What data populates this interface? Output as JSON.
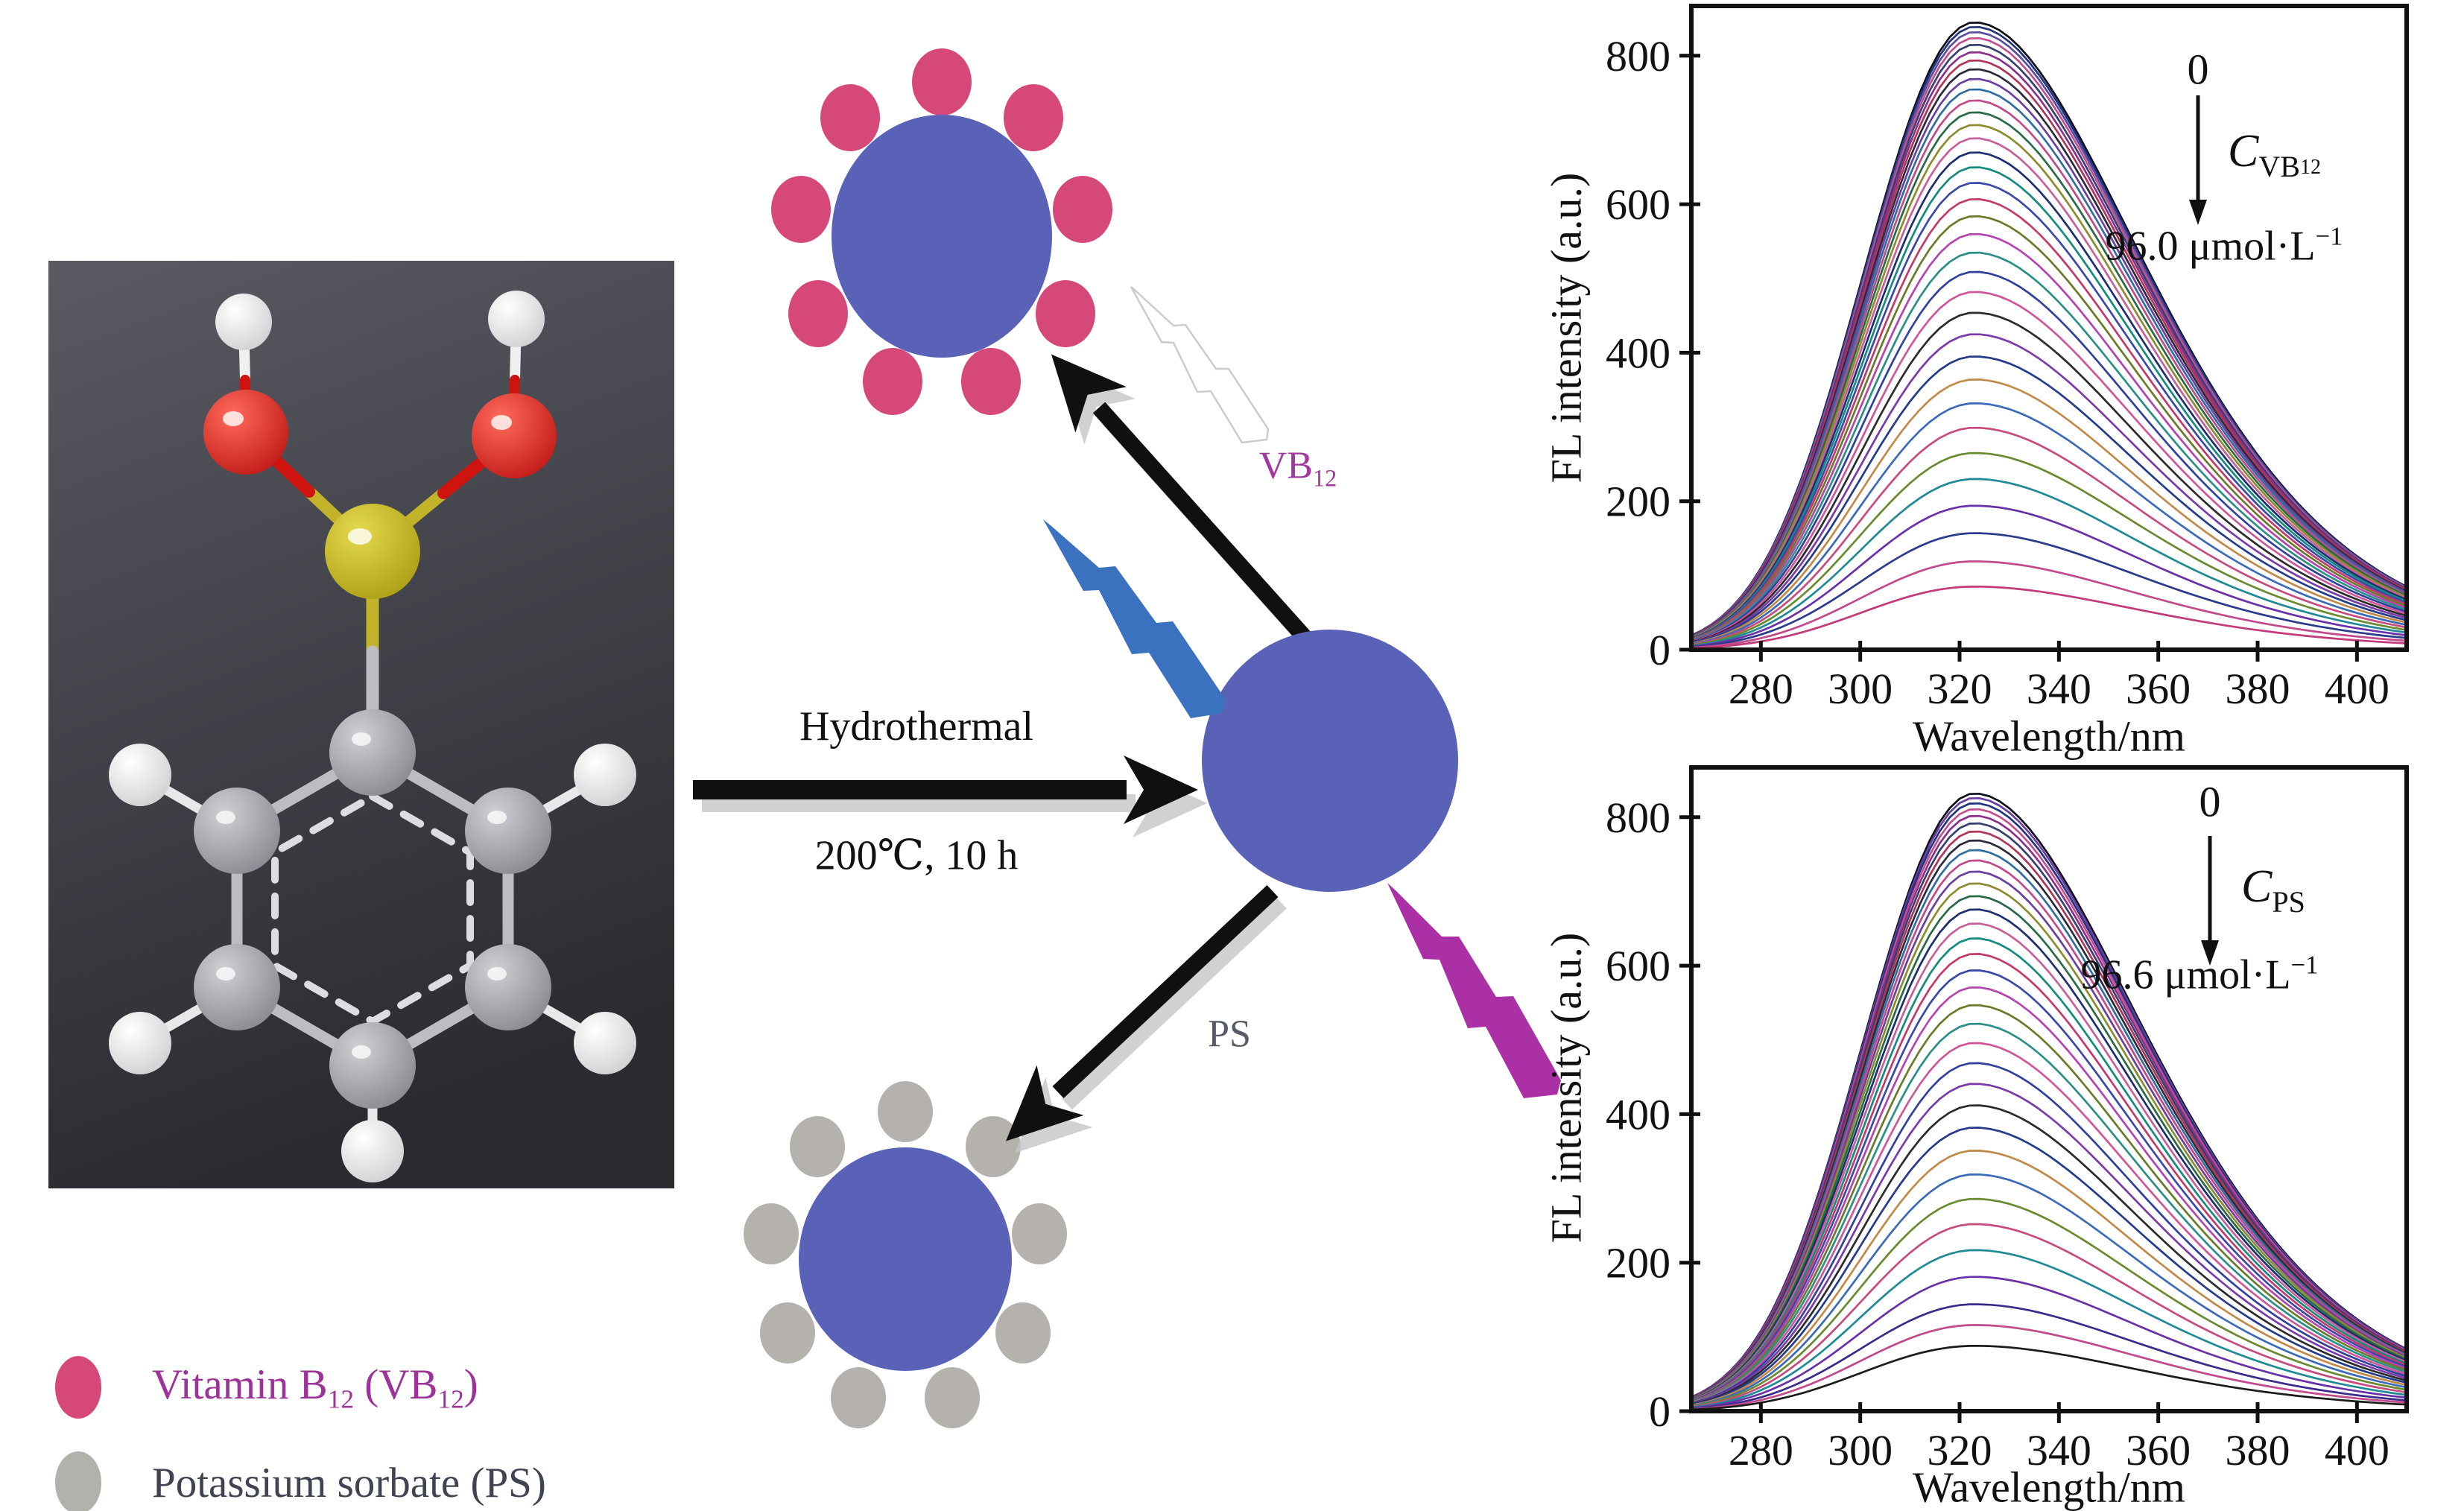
{
  "scheme": {
    "reaction_label_top": "Hydrothermal",
    "reaction_label_bottom": "200℃, 10 h",
    "vb12_tag": {
      "base": "VB",
      "sub": "12"
    },
    "ps_tag": "PS",
    "colors": {
      "particle_blue": "#5a62b7",
      "vb12_pink": "#d6487a",
      "ps_gray": "#b5b2ad",
      "bolt_blue": "#3a72bf",
      "bolt_magenta": "#ab2fa5",
      "vb12_label": "#a238a0",
      "ps_label": "#565b66",
      "arrow_black": "#101010"
    }
  },
  "molecule": {
    "colors": {
      "background_top": "#5a5a63",
      "background_bottom": "#2a2a30",
      "carbon": "#9c9ca2",
      "hydrogen": "#f2f2f2",
      "oxygen": "#d31712",
      "boron": "#c3b32a"
    }
  },
  "legend": {
    "items": [
      {
        "p1": "Vitamin B",
        "s1": "12",
        "p2": " (VB",
        "s2": "12",
        "p3": ")",
        "marker_color": "#d6487a",
        "text_color": "#9c3399"
      },
      {
        "label": "Potassium sorbate (PS)",
        "marker_color": "#b3b1ac",
        "text_color": "#3f4450"
      }
    ]
  },
  "chart_data": [
    {
      "type": "line",
      "title": "",
      "xlabel": "Wavelength/nm",
      "ylabel": "FL intensity (a.u.)",
      "xlim": [
        266,
        410
      ],
      "ylim": [
        0,
        867
      ],
      "xticks": [
        280,
        300,
        320,
        340,
        360,
        380,
        400
      ],
      "yticks": [
        0,
        200,
        400,
        600,
        800
      ],
      "grid": false,
      "legend_position": "none",
      "peak_nm": 323,
      "annotation": {
        "start": "0",
        "quantity": {
          "symbol": "C",
          "sub": "VB",
          "subsub": "12"
        },
        "end": {
          "text": "96.0 μmol·L",
          "sup": "−1"
        }
      },
      "curve_shape": {
        "sigma_left_base": 23,
        "sigma_left_slope": -0.04,
        "sigma_right_base": 31,
        "sigma_right_slope": 0.11
      },
      "peaks": [
        845,
        839,
        832,
        824,
        815,
        805,
        794,
        782,
        769,
        755,
        740,
        724,
        707,
        689,
        670,
        650,
        629,
        607,
        584,
        560,
        535,
        509,
        482,
        454,
        425,
        395,
        364,
        332,
        299,
        265,
        230,
        194,
        157,
        119,
        85
      ],
      "colors": [
        "#10101a",
        "#23347f",
        "#5b4ea0",
        "#c44f8e",
        "#35406e",
        "#8c2f8c",
        "#b03557",
        "#2a2a3c",
        "#6a3fa0",
        "#2f6e9e",
        "#c2498a",
        "#276a45",
        "#8c8c2f",
        "#c75f9b",
        "#1d2e6e",
        "#158a7e",
        "#3a49a8",
        "#c33a6a",
        "#6a7a28",
        "#b344b0",
        "#2a8f86",
        "#30409c",
        "#d0569a",
        "#2b2b2b",
        "#7a3aa8",
        "#233b8a",
        "#c28a48",
        "#3a6ab8",
        "#c84b7e",
        "#6a8a30",
        "#1f8a95",
        "#6930a8",
        "#2b3a8c",
        "#c2498a",
        "#c23a7a"
      ]
    },
    {
      "type": "line",
      "title": "",
      "xlabel": "Wavelength/nm",
      "ylabel": "FL intensity (a.u.)",
      "xlim": [
        266,
        410
      ],
      "ylim": [
        0,
        867
      ],
      "xticks": [
        280,
        300,
        320,
        340,
        360,
        380,
        400
      ],
      "yticks": [
        0,
        200,
        400,
        600,
        800
      ],
      "grid": false,
      "legend_position": "none",
      "peak_nm": 323,
      "annotation": {
        "start": "0",
        "quantity": {
          "symbol": "C",
          "sub": "PS",
          "subsub": ""
        },
        "end": {
          "text": "96.6 μmol·L",
          "sup": "−1"
        }
      },
      "curve_shape": {
        "sigma_left_base": 23,
        "sigma_left_slope": -0.04,
        "sigma_right_base": 31,
        "sigma_right_slope": 0.11
      },
      "peaks": [
        832,
        826,
        819,
        811,
        802,
        792,
        781,
        769,
        756,
        742,
        727,
        711,
        694,
        676,
        657,
        637,
        616,
        594,
        571,
        547,
        522,
        496,
        469,
        441,
        412,
        382,
        351,
        319,
        286,
        252,
        217,
        181,
        144,
        116,
        88
      ],
      "colors": [
        "#10101a",
        "#6a3fa0",
        "#23347f",
        "#c44f8e",
        "#8c2f8c",
        "#35406e",
        "#b03557",
        "#2a2a3c",
        "#2f6e9e",
        "#c2498a",
        "#6a3fa0",
        "#8c8c2f",
        "#276a45",
        "#1d2e6e",
        "#c75f9b",
        "#158a7e",
        "#c33a6a",
        "#3a49a8",
        "#b344b0",
        "#6a7a28",
        "#2a8f86",
        "#d0569a",
        "#30409c",
        "#7a3aa8",
        "#2b2b2b",
        "#233b8a",
        "#c28a48",
        "#3a6ab8",
        "#6a8a30",
        "#c84b7e",
        "#1f8a95",
        "#6930a8",
        "#3a2a8c",
        "#c2498a",
        "#1b1b1b"
      ]
    }
  ]
}
